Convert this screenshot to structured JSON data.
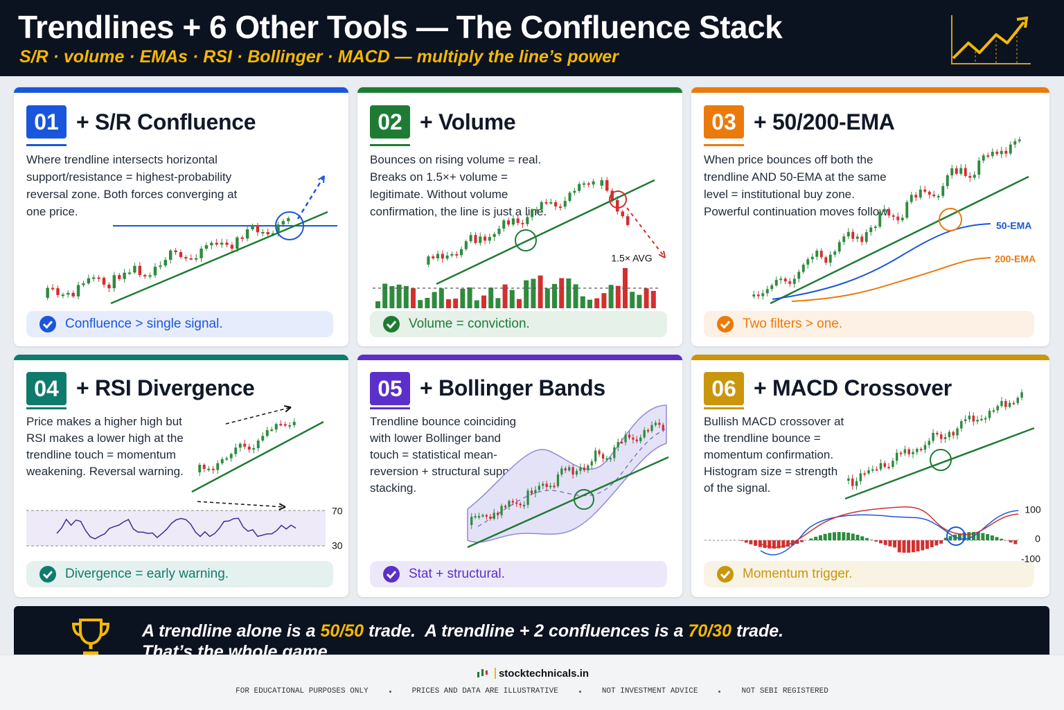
{
  "header": {
    "title": "Trendlines + 6 Other Tools — The Confluence Stack",
    "subtitle": "S/R · volume · EMAs · RSI · Bollinger · MACD — multiply the line’s power"
  },
  "cards": [
    {
      "number": "01",
      "title": "+ S/R Confluence",
      "color": "#1a56db",
      "body": "Where trendline intersects horizontal support/resistance = highest-probability reversal zone. Both forces converging at one price.",
      "takeaway": "Confluence > single signal.",
      "chart_labels": []
    },
    {
      "number": "02",
      "title": "+ Volume",
      "color": "#1e7b34",
      "body": "Bounces on rising volume = real. Breaks on 1.5×+ volume = legitimate. Without volume confirmation, the line is just a line.",
      "takeaway": "Volume = conviction.",
      "chart_labels": [
        "1.5× AVG"
      ]
    },
    {
      "number": "03",
      "title": "+ 50/200-EMA",
      "color": "#ea7a0c",
      "body": "When price bounces off both the trendline AND 50-EMA at the same level = institutional buy zone. Powerful continuation moves follow.",
      "takeaway": "Two filters > one.",
      "chart_labels": [
        "50-EMA",
        "200-EMA"
      ]
    },
    {
      "number": "04",
      "title": "+ RSI Divergence",
      "color": "#0f7b6c",
      "body": "Price makes a higher high but RSI makes a lower high at the trendline touch = momentum weakening. Reversal warning.",
      "takeaway": "Divergence = early warning.",
      "chart_labels": [
        "70",
        "30"
      ]
    },
    {
      "number": "05",
      "title": "+ Bollinger Bands",
      "color": "#5b2fc9",
      "body": "Trendline bounce coinciding with lower Bollinger band touch = statistical mean-reversion + structural support stacking.",
      "takeaway": "Stat + structural.",
      "chart_labels": []
    },
    {
      "number": "06",
      "title": "+ MACD Crossover",
      "color": "#c9960c",
      "body": "Bullish MACD crossover at the trendline bounce = momentum confirmation. Histogram size = strength of the signal.",
      "takeaway": "Momentum trigger.",
      "chart_labels": [
        "100",
        "0",
        "-100"
      ]
    }
  ],
  "banner": {
    "parts": [
      "A trendline alone is a ",
      "50/50",
      " trade.  A trendline + 2 confluences is a ",
      "70/30",
      " trade."
    ],
    "line2": "That’s the whole game."
  },
  "footer": {
    "brand": "stocktechnicals.in",
    "notes": [
      "FOR EDUCATIONAL PURPOSES ONLY",
      "PRICES AND DATA ARE ILLUSTRATIVE",
      "NOT INVESTMENT ADVICE",
      "NOT SEBI REGISTERED"
    ]
  }
}
